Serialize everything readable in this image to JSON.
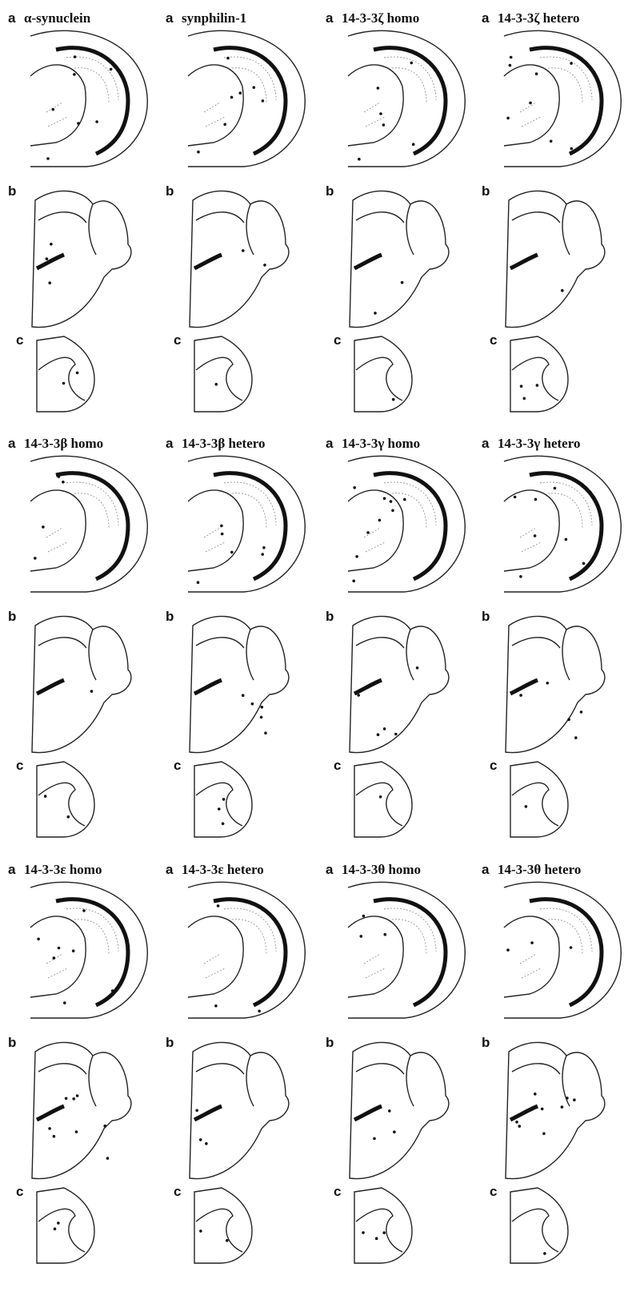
{
  "panels": [
    {
      "a": "a",
      "title": "α-synuclein",
      "b": "b",
      "c": "c"
    },
    {
      "a": "a",
      "title": "synphilin-1",
      "b": "b",
      "c": "c"
    },
    {
      "a": "a",
      "title": "14-3-3ζ homo",
      "b": "b",
      "c": "c"
    },
    {
      "a": "a",
      "title": "14-3-3ζ hetero",
      "b": "b",
      "c": "c"
    },
    {
      "a": "a",
      "title": "14-3-3β homo",
      "b": "b",
      "c": "c"
    },
    {
      "a": "a",
      "title": "14-3-3β hetero",
      "b": "b",
      "c": "c"
    },
    {
      "a": "a",
      "title": "14-3-3γ homo",
      "b": "b",
      "c": "c"
    },
    {
      "a": "a",
      "title": "14-3-3γ hetero",
      "b": "b",
      "c": "c"
    },
    {
      "a": "a",
      "title": "14-3-3ε homo",
      "b": "b",
      "c": "c"
    },
    {
      "a": "a",
      "title": "14-3-3ε hetero",
      "b": "b",
      "c": "c"
    },
    {
      "a": "a",
      "title": "14-3-3θ homo",
      "b": "b",
      "c": "c"
    },
    {
      "a": "a",
      "title": "14-3-3θ hetero",
      "b": "b",
      "c": "c"
    }
  ]
}
